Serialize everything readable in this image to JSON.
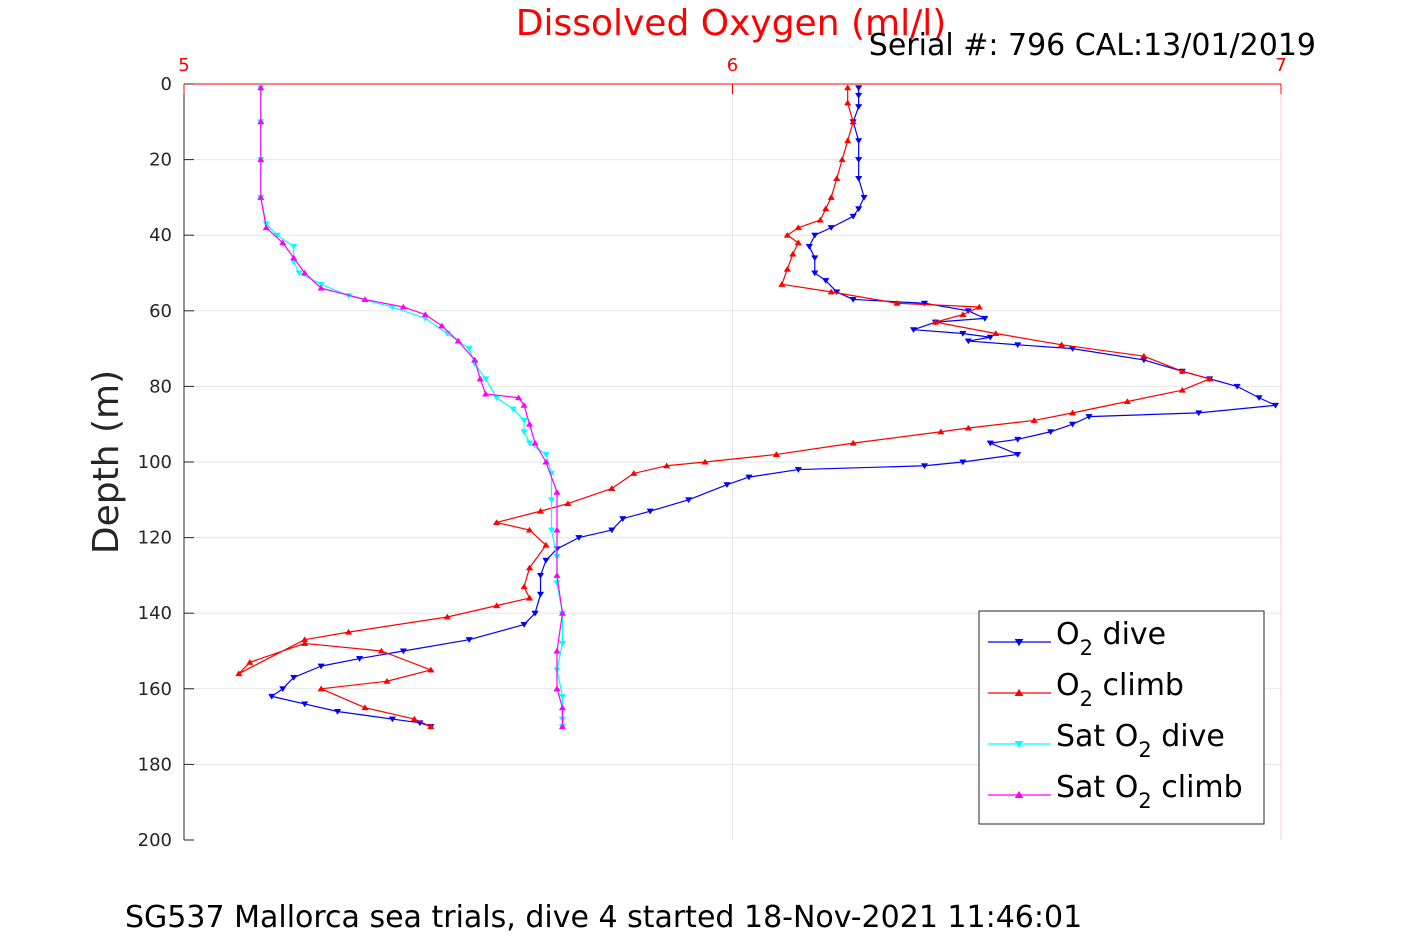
{
  "title": "Dissolved Oxygen (ml/l)",
  "serial_text": "Serial #: 796  CAL:13/01/2019",
  "caption": "SG537 Mallorca sea trials, dive 4 started 18-Nov-2021 11:46:01",
  "colors": {
    "o2_dive": "#0000ff",
    "o2_climb": "#ff0000",
    "sat_dive": "#00ffff",
    "sat_climb": "#ff00ff",
    "x_axis": "#ff0000"
  },
  "legend": [
    {
      "prefix": "O",
      "sub": "2",
      "suffix": " dive",
      "color": "#0000ff",
      "marker": "down"
    },
    {
      "prefix": "O",
      "sub": "2",
      "suffix": " climb",
      "color": "#ff0000",
      "marker": "up"
    },
    {
      "prefix": "Sat O",
      "sub": "2",
      "suffix": " dive",
      "color": "#00ffff",
      "marker": "down"
    },
    {
      "prefix": "Sat O",
      "sub": "2",
      "suffix": " climb",
      "color": "#ff00ff",
      "marker": "up"
    }
  ],
  "chart_data": {
    "type": "line",
    "title": "Dissolved Oxygen (ml/l)",
    "xlabel": "",
    "ylabel": "Depth (m)",
    "xlim": [
      5,
      7
    ],
    "ylim": [
      0,
      200
    ],
    "y_reversed": true,
    "x_axis_position": "top",
    "xticks": [
      5,
      6,
      7
    ],
    "yticks": [
      0,
      20,
      40,
      60,
      80,
      100,
      120,
      140,
      160,
      180,
      200
    ],
    "grid": true,
    "legend_position": "bottom-right",
    "series": [
      {
        "name": "O2 dive",
        "color": "#0000ff",
        "marker": "down",
        "points": [
          [
            6.23,
            1
          ],
          [
            6.23,
            3
          ],
          [
            6.23,
            6
          ],
          [
            6.22,
            10
          ],
          [
            6.23,
            15
          ],
          [
            6.23,
            20
          ],
          [
            6.23,
            25
          ],
          [
            6.24,
            30
          ],
          [
            6.23,
            33
          ],
          [
            6.22,
            35
          ],
          [
            6.18,
            38
          ],
          [
            6.15,
            40
          ],
          [
            6.14,
            43
          ],
          [
            6.15,
            46
          ],
          [
            6.15,
            50
          ],
          [
            6.17,
            52
          ],
          [
            6.19,
            55
          ],
          [
            6.22,
            57
          ],
          [
            6.35,
            58
          ],
          [
            6.43,
            60
          ],
          [
            6.46,
            62
          ],
          [
            6.37,
            63
          ],
          [
            6.33,
            65
          ],
          [
            6.42,
            66
          ],
          [
            6.47,
            67
          ],
          [
            6.43,
            68
          ],
          [
            6.52,
            69
          ],
          [
            6.62,
            70
          ],
          [
            6.75,
            73
          ],
          [
            6.82,
            76
          ],
          [
            6.87,
            78
          ],
          [
            6.92,
            80
          ],
          [
            6.96,
            83
          ],
          [
            6.99,
            85
          ],
          [
            6.85,
            87
          ],
          [
            6.65,
            88
          ],
          [
            6.62,
            90
          ],
          [
            6.58,
            92
          ],
          [
            6.52,
            94
          ],
          [
            6.47,
            95
          ],
          [
            6.52,
            98
          ],
          [
            6.42,
            100
          ],
          [
            6.35,
            101
          ],
          [
            6.12,
            102
          ],
          [
            6.03,
            104
          ],
          [
            5.99,
            106
          ],
          [
            5.92,
            110
          ],
          [
            5.85,
            113
          ],
          [
            5.8,
            115
          ],
          [
            5.78,
            118
          ],
          [
            5.72,
            120
          ],
          [
            5.68,
            123
          ],
          [
            5.66,
            126
          ],
          [
            5.65,
            130
          ],
          [
            5.65,
            135
          ],
          [
            5.64,
            140
          ],
          [
            5.62,
            143
          ],
          [
            5.52,
            147
          ],
          [
            5.4,
            150
          ],
          [
            5.32,
            152
          ],
          [
            5.25,
            154
          ],
          [
            5.2,
            157
          ],
          [
            5.18,
            160
          ],
          [
            5.16,
            162
          ],
          [
            5.22,
            164
          ],
          [
            5.28,
            166
          ],
          [
            5.38,
            168
          ],
          [
            5.43,
            169
          ],
          [
            5.45,
            170
          ]
        ]
      },
      {
        "name": "O2 climb",
        "color": "#ff0000",
        "marker": "up",
        "points": [
          [
            5.45,
            170
          ],
          [
            5.42,
            168
          ],
          [
            5.33,
            165
          ],
          [
            5.25,
            160
          ],
          [
            5.37,
            158
          ],
          [
            5.45,
            155
          ],
          [
            5.36,
            150
          ],
          [
            5.22,
            148
          ],
          [
            5.12,
            153
          ],
          [
            5.1,
            156
          ],
          [
            5.22,
            147
          ],
          [
            5.3,
            145
          ],
          [
            5.48,
            141
          ],
          [
            5.57,
            138
          ],
          [
            5.63,
            136
          ],
          [
            5.62,
            133
          ],
          [
            5.63,
            128
          ],
          [
            5.66,
            122
          ],
          [
            5.63,
            118
          ],
          [
            5.57,
            116
          ],
          [
            5.65,
            113
          ],
          [
            5.7,
            111
          ],
          [
            5.78,
            107
          ],
          [
            5.82,
            103
          ],
          [
            5.88,
            101
          ],
          [
            5.95,
            100
          ],
          [
            6.08,
            98
          ],
          [
            6.22,
            95
          ],
          [
            6.38,
            92
          ],
          [
            6.43,
            91
          ],
          [
            6.55,
            89
          ],
          [
            6.62,
            87
          ],
          [
            6.72,
            84
          ],
          [
            6.82,
            81
          ],
          [
            6.87,
            78
          ],
          [
            6.82,
            76
          ],
          [
            6.75,
            72
          ],
          [
            6.6,
            69
          ],
          [
            6.48,
            66
          ],
          [
            6.37,
            63
          ],
          [
            6.42,
            61
          ],
          [
            6.45,
            59
          ],
          [
            6.3,
            58
          ],
          [
            6.18,
            55
          ],
          [
            6.09,
            53
          ],
          [
            6.1,
            49
          ],
          [
            6.11,
            45
          ],
          [
            6.12,
            42
          ],
          [
            6.1,
            40
          ],
          [
            6.12,
            38
          ],
          [
            6.16,
            36
          ],
          [
            6.17,
            33
          ],
          [
            6.18,
            30
          ],
          [
            6.19,
            25
          ],
          [
            6.2,
            20
          ],
          [
            6.21,
            15
          ],
          [
            6.22,
            10
          ],
          [
            6.21,
            5
          ],
          [
            6.21,
            1
          ]
        ]
      },
      {
        "name": "Sat O2 dive",
        "color": "#00ffff",
        "marker": "down",
        "points": [
          [
            5.14,
            1
          ],
          [
            5.14,
            10
          ],
          [
            5.14,
            20
          ],
          [
            5.14,
            30
          ],
          [
            5.15,
            37
          ],
          [
            5.17,
            40
          ],
          [
            5.2,
            43
          ],
          [
            5.2,
            47
          ],
          [
            5.21,
            50
          ],
          [
            5.25,
            53
          ],
          [
            5.3,
            56
          ],
          [
            5.38,
            59
          ],
          [
            5.44,
            62
          ],
          [
            5.48,
            66
          ],
          [
            5.52,
            70
          ],
          [
            5.53,
            74
          ],
          [
            5.55,
            78
          ],
          [
            5.57,
            83
          ],
          [
            5.6,
            86
          ],
          [
            5.62,
            89
          ],
          [
            5.62,
            92
          ],
          [
            5.63,
            95
          ],
          [
            5.66,
            98
          ],
          [
            5.67,
            103
          ],
          [
            5.67,
            110
          ],
          [
            5.67,
            118
          ],
          [
            5.68,
            125
          ],
          [
            5.68,
            132
          ],
          [
            5.69,
            140
          ],
          [
            5.69,
            148
          ],
          [
            5.68,
            155
          ],
          [
            5.69,
            162
          ],
          [
            5.69,
            168
          ],
          [
            5.69,
            170
          ]
        ]
      },
      {
        "name": "Sat O2 climb",
        "color": "#ff00ff",
        "marker": "up",
        "points": [
          [
            5.69,
            170
          ],
          [
            5.69,
            165
          ],
          [
            5.68,
            160
          ],
          [
            5.68,
            150
          ],
          [
            5.69,
            140
          ],
          [
            5.68,
            130
          ],
          [
            5.68,
            118
          ],
          [
            5.68,
            108
          ],
          [
            5.66,
            100
          ],
          [
            5.64,
            95
          ],
          [
            5.63,
            90
          ],
          [
            5.62,
            85
          ],
          [
            5.61,
            83
          ],
          [
            5.55,
            82
          ],
          [
            5.54,
            78
          ],
          [
            5.53,
            73
          ],
          [
            5.5,
            68
          ],
          [
            5.47,
            64
          ],
          [
            5.44,
            61
          ],
          [
            5.4,
            59
          ],
          [
            5.33,
            57
          ],
          [
            5.25,
            54
          ],
          [
            5.22,
            50
          ],
          [
            5.2,
            46
          ],
          [
            5.18,
            42
          ],
          [
            5.15,
            38
          ],
          [
            5.14,
            30
          ],
          [
            5.14,
            20
          ],
          [
            5.14,
            10
          ],
          [
            5.14,
            1
          ]
        ]
      }
    ]
  }
}
